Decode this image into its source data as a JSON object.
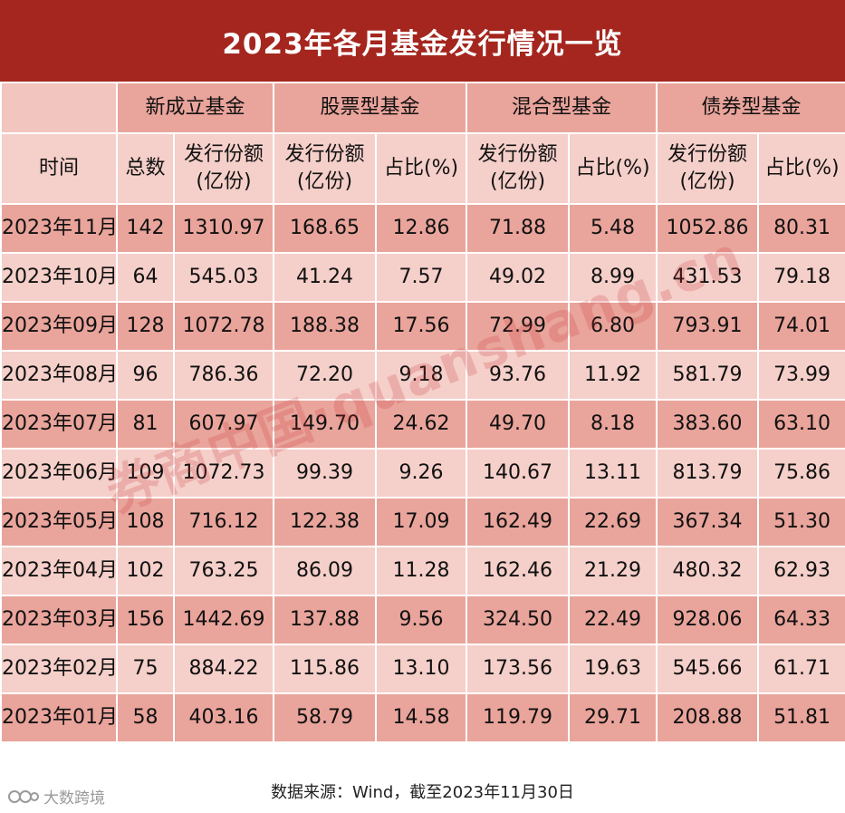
{
  "title": "2023年各月基金发行情况一览",
  "chart_data": {
    "type": "table",
    "group_headers": [
      "新成立基金",
      "股票型基金",
      "混合型基金",
      "债券型基金"
    ],
    "sub_headers": {
      "time": "时间",
      "total": "总数",
      "amount": "发行份额\n(亿份)",
      "share": "占比(%)"
    },
    "rows": [
      [
        "2023年11月",
        "142",
        "1310.97",
        "168.65",
        "12.86",
        "71.88",
        "5.48",
        "1052.86",
        "80.31"
      ],
      [
        "2023年10月",
        "64",
        "545.03",
        "41.24",
        "7.57",
        "49.02",
        "8.99",
        "431.53",
        "79.18"
      ],
      [
        "2023年09月",
        "128",
        "1072.78",
        "188.38",
        "17.56",
        "72.99",
        "6.80",
        "793.91",
        "74.01"
      ],
      [
        "2023年08月",
        "96",
        "786.36",
        "72.20",
        "9.18",
        "93.76",
        "11.92",
        "581.79",
        "73.99"
      ],
      [
        "2023年07月",
        "81",
        "607.97",
        "149.70",
        "24.62",
        "49.70",
        "8.18",
        "383.60",
        "63.10"
      ],
      [
        "2023年06月",
        "109",
        "1072.73",
        "99.39",
        "9.26",
        "140.67",
        "13.11",
        "813.79",
        "75.86"
      ],
      [
        "2023年05月",
        "108",
        "716.12",
        "122.38",
        "17.09",
        "162.49",
        "22.69",
        "367.34",
        "51.30"
      ],
      [
        "2023年04月",
        "102",
        "763.25",
        "86.09",
        "11.28",
        "162.46",
        "21.29",
        "480.32",
        "62.93"
      ],
      [
        "2023年03月",
        "156",
        "1442.69",
        "137.88",
        "9.56",
        "324.50",
        "22.49",
        "928.06",
        "64.33"
      ],
      [
        "2023年02月",
        "75",
        "884.22",
        "115.86",
        "13.10",
        "173.56",
        "19.63",
        "545.66",
        "61.71"
      ],
      [
        "2023年01月",
        "58",
        "403.16",
        "58.79",
        "14.58",
        "119.79",
        "29.71",
        "208.88",
        "51.81"
      ]
    ]
  },
  "footer": "数据来源：Wind，截至2023年11月30日",
  "watermark": "券商中国·quanshang.cn",
  "logo_text": "大数跨境",
  "colors": {
    "title_bg": "#a4261e",
    "row_dark": "#e9a49b",
    "row_light": "#f5cfc9"
  }
}
